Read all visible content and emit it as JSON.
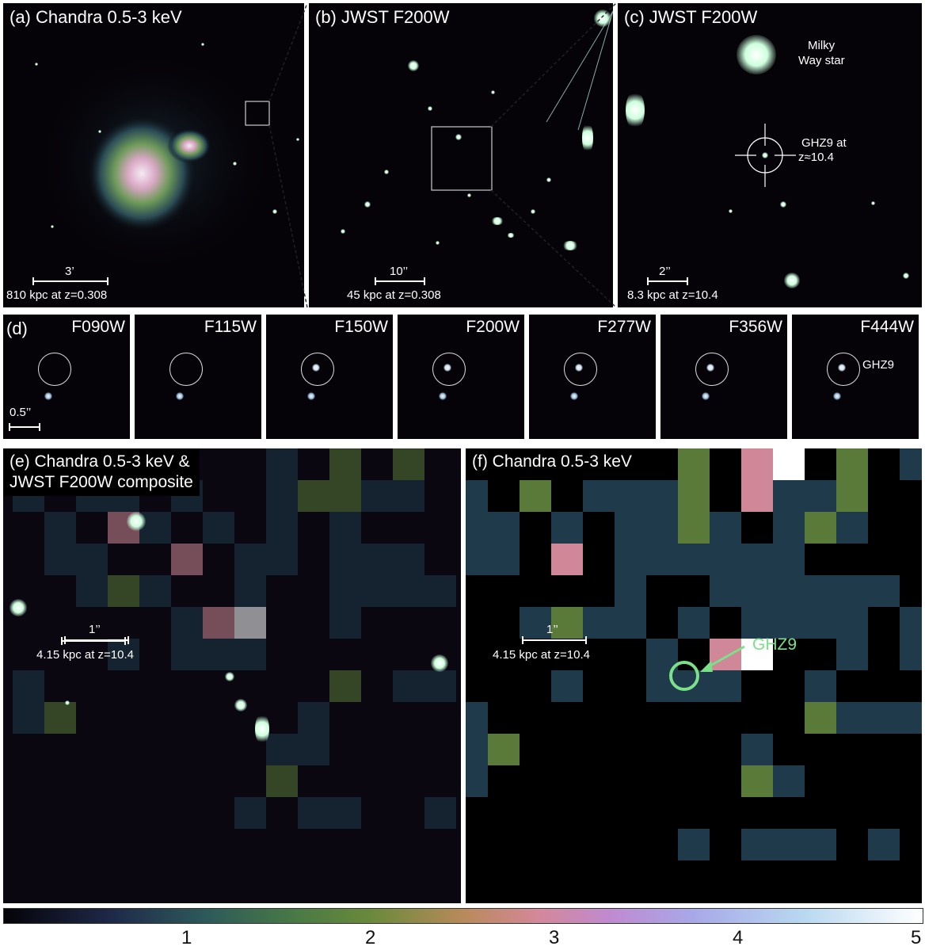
{
  "panels": {
    "a": {
      "title": "(a) Chandra 0.5-3 keV",
      "scale_angle": "3’",
      "scale_phys": "810 kpc at z=0.308"
    },
    "b": {
      "title": "(b) JWST F200W",
      "scale_angle": "10’’",
      "scale_phys": "45 kpc at z=0.308"
    },
    "c": {
      "title": "(c) JWST F200W",
      "star_label_1": "Milky",
      "star_label_2": "Way star",
      "target_label_1": "GHZ9 at",
      "target_label_2": "z≈10.4",
      "scale_angle": "2’’",
      "scale_phys": "8.3 kpc at z=10.4"
    },
    "d": {
      "label": "(d)",
      "scale": "0.5’’",
      "target": "GHZ9",
      "filters": [
        "F090W",
        "F115W",
        "F150W",
        "F200W",
        "F277W",
        "F356W",
        "F444W"
      ]
    },
    "e": {
      "title_1": "(e) Chandra 0.5-3 keV &",
      "title_2": "JWST F200W composite",
      "scale_angle": "1’’",
      "scale_phys": "4.15 kpc at z=10.4"
    },
    "f": {
      "title": "(f) Chandra 0.5-3 keV",
      "target": "GHZ9",
      "scale_angle": "1’’",
      "scale_phys": "4.15 kpc at z=10.4"
    }
  },
  "colorbar": {
    "ticks": [
      "1",
      "2",
      "3",
      "4",
      "5"
    ]
  },
  "colors": {
    "dark_teal": "#1f3a4b",
    "olive": "#5a7a3a",
    "pink": "#d08898",
    "white": "#ffffff",
    "green_marker": "#7be08a"
  }
}
